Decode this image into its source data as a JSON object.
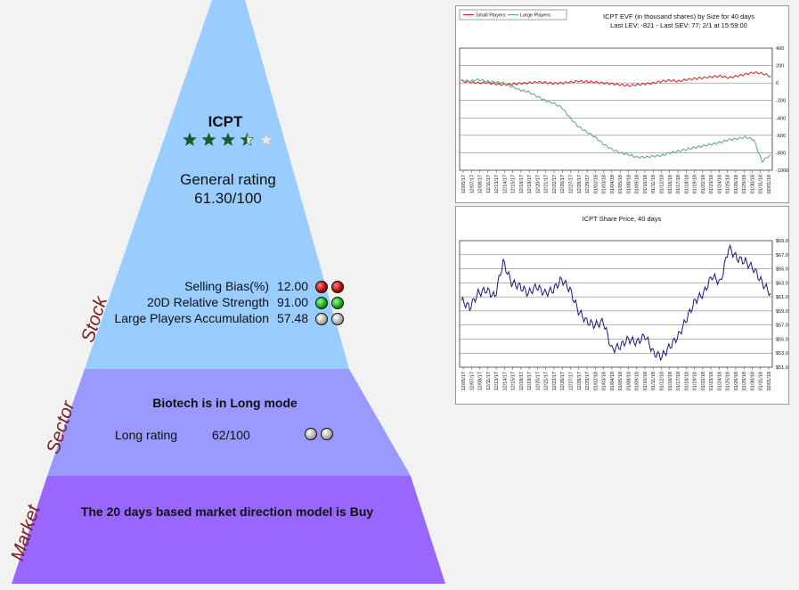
{
  "stock": {
    "ticker": "ICPT",
    "stars": 3.5,
    "rating_label": "General rating",
    "rating_value": "61.30/100",
    "metrics": [
      {
        "label": "Selling Bias(%)",
        "value": "12.00",
        "balls": [
          "red",
          "red"
        ]
      },
      {
        "label": "20D Relative Strength",
        "value": "91.00",
        "balls": [
          "green",
          "green"
        ]
      },
      {
        "label": "Large Players Accumulation",
        "value": "57.48",
        "balls": [
          "grey",
          "grey"
        ]
      }
    ]
  },
  "sector": {
    "headline": "Biotech is in Long mode",
    "rating_label": "Long rating",
    "rating_value": "62/100",
    "balls": [
      "grey",
      "grey"
    ]
  },
  "market": {
    "headline": "The 20 days based market direction model is Buy"
  },
  "tiers": {
    "stock": "Stock",
    "sector": "Sector",
    "market": "Market"
  },
  "colors": {
    "stock_tier": "#99ccff",
    "sector_tier": "#9999ff",
    "market_tier": "#9966ff",
    "star": "#1a5c2a",
    "small_players": "#e02020",
    "large_players": "#5aa878",
    "price_line": "#1a1a80"
  },
  "chart_data": [
    {
      "type": "line",
      "title": "ICPT EVF (in thousand shares) by Size for 40 days",
      "subtitle": "Last LEV: -821 - Last SEV: 77; 2/1 at 15:59:00",
      "legend": [
        "Small Players",
        "Large Players"
      ],
      "legend_position": "top-left",
      "y_ticks": [
        "400",
        "200",
        "0",
        "-200",
        "-400",
        "-600",
        "-800",
        "-1000"
      ],
      "ylim": [
        -1000,
        400
      ],
      "x_ticks": [
        "12/05/17",
        "12/07/17",
        "12/08/17",
        "12/11/17",
        "12/13/17",
        "12/14/17",
        "12/15/17",
        "12/18/17",
        "12/19/17",
        "12/20/17",
        "12/21/17",
        "12/22/17",
        "12/26/17",
        "12/27/17",
        "12/28/17",
        "12/29/17",
        "01/02/18",
        "01/03/18",
        "01/04/18",
        "01/05/18",
        "01/08/18",
        "01/09/18",
        "01/10/18",
        "01/11/18",
        "01/12/18",
        "01/16/18",
        "01/17/18",
        "01/18/18",
        "01/19/18",
        "01/22/18",
        "01/23/18",
        "01/24/18",
        "01/25/18",
        "01/26/18",
        "01/29/18",
        "01/30/18",
        "01/31/18",
        "02/01/18"
      ],
      "series": [
        {
          "name": "Small Players",
          "values": [
            20,
            10,
            0,
            5,
            -10,
            -20,
            -15,
            -5,
            0,
            10,
            5,
            -5,
            0,
            10,
            20,
            15,
            10,
            0,
            -10,
            -20,
            -30,
            -20,
            -10,
            0,
            20,
            30,
            20,
            40,
            50,
            60,
            70,
            80,
            60,
            80,
            100,
            120,
            110,
            77
          ]
        },
        {
          "name": "Large Players",
          "values": [
            30,
            20,
            40,
            20,
            10,
            0,
            -40,
            -80,
            -100,
            -150,
            -200,
            -230,
            -280,
            -400,
            -500,
            -560,
            -620,
            -700,
            -760,
            -800,
            -820,
            -850,
            -850,
            -840,
            -830,
            -800,
            -780,
            -760,
            -740,
            -720,
            -700,
            -680,
            -650,
            -640,
            -620,
            -650,
            -900,
            -821
          ]
        }
      ]
    },
    {
      "type": "line",
      "title": "ICPT Share Price, 40 days",
      "y_ticks": [
        "$69.0",
        "$67.0",
        "$65.0",
        "$63.0",
        "$61.0",
        "$59.0",
        "$57.0",
        "$55.0",
        "$53.0",
        "$51.0"
      ],
      "ylim": [
        51,
        69
      ],
      "x_ticks": [
        "12/05/17",
        "12/07/17",
        "12/08/17",
        "12/11/17",
        "12/13/17",
        "12/14/17",
        "12/15/17",
        "12/18/17",
        "12/19/17",
        "12/20/17",
        "12/21/17",
        "12/22/17",
        "12/26/17",
        "12/27/17",
        "12/28/17",
        "12/29/17",
        "01/02/18",
        "01/03/18",
        "01/04/18",
        "01/05/18",
        "01/08/18",
        "01/09/18",
        "01/10/18",
        "01/11/18",
        "01/12/18",
        "01/16/18",
        "01/17/18",
        "01/18/18",
        "01/19/18",
        "01/22/18",
        "01/23/18",
        "01/24/18",
        "01/25/18",
        "01/26/18",
        "01/29/18",
        "01/30/18",
        "01/31/18",
        "02/01/18"
      ],
      "series": [
        {
          "name": "ICPT",
          "values": [
            60.5,
            59.5,
            61.5,
            62.0,
            61.0,
            66.0,
            63.0,
            62.5,
            61.5,
            62.5,
            61.5,
            62.0,
            63.5,
            62.0,
            59.0,
            57.5,
            57.0,
            57.5,
            53.5,
            54.0,
            55.0,
            54.5,
            55.5,
            53.0,
            52.5,
            54.0,
            55.5,
            58.0,
            60.5,
            61.5,
            64.0,
            63.0,
            68.0,
            66.5,
            66.0,
            65.0,
            63.0,
            61.5
          ]
        }
      ]
    }
  ]
}
